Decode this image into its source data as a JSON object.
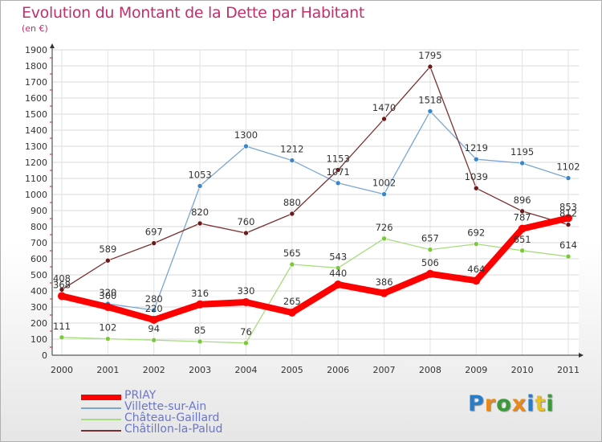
{
  "title": "Evolution du Montant de la Dette par Habitant",
  "unit": "(en €)",
  "logo": {
    "text": "Proxiti",
    "colors": [
      "#2a7cc7",
      "#e8891a",
      "#3a9a3a",
      "#e8891a",
      "#2a7cc7",
      "#e8c21a",
      "#3a9a3a"
    ]
  },
  "chart_data": {
    "type": "line",
    "x": [
      "2000",
      "2001",
      "2002",
      "2003",
      "2004",
      "2005",
      "2006",
      "2007",
      "2008",
      "2009",
      "2010",
      "2011"
    ],
    "ylim": [
      0,
      1900
    ],
    "yticks": [
      0,
      100,
      200,
      300,
      400,
      500,
      600,
      700,
      800,
      900,
      1000,
      1100,
      1200,
      1300,
      1400,
      1500,
      1600,
      1700,
      1800,
      1900
    ],
    "grid": true,
    "legend": "bottom-left",
    "series": [
      {
        "name": "Villette-sur-Ain",
        "color": "#7aa6d2",
        "marker": "#3a86c8",
        "values": [
          368,
          320,
          280,
          1053,
          1300,
          1212,
          1071,
          1002,
          1518,
          1219,
          1195,
          1102
        ],
        "labels": [
          "368",
          "320",
          "280",
          "1053",
          "1300",
          "1212",
          "1071",
          "1002",
          "1518",
          "1219",
          "1195",
          "1102"
        ]
      },
      {
        "name": "Château-Gaillard",
        "color": "#a8dc80",
        "marker": "#7ac93a",
        "values": [
          111,
          102,
          94,
          85,
          76,
          565,
          543,
          726,
          657,
          692,
          651,
          614
        ],
        "labels": [
          "111",
          "102",
          "94",
          "85",
          "76",
          "565",
          "543",
          "726",
          "657",
          "692",
          "651",
          "614"
        ]
      },
      {
        "name": "Châtillon-la-Palud",
        "color": "#7a3030",
        "marker": "#6a1a1a",
        "values": [
          408,
          589,
          697,
          820,
          760,
          880,
          1153,
          1470,
          1795,
          1039,
          896,
          812
        ],
        "labels": [
          "408",
          "589",
          "697",
          "820",
          "760",
          "880",
          "1153",
          "1470",
          "1795",
          "1039",
          "896",
          "812"
        ]
      },
      {
        "name": "PRIAY",
        "color": "#ff0000",
        "marker": "#ff0000",
        "values": [
          368,
          300,
          220,
          316,
          330,
          265,
          440,
          386,
          506,
          464,
          787,
          853
        ],
        "labels": [
          "",
          "300",
          "220",
          "316",
          "330",
          "265",
          "440",
          "386",
          "506",
          "464",
          "787",
          "853"
        ]
      }
    ],
    "legend_order": [
      "PRIAY",
      "Villette-sur-Ain",
      "Château-Gaillard",
      "Châtillon-la-Palud"
    ]
  }
}
